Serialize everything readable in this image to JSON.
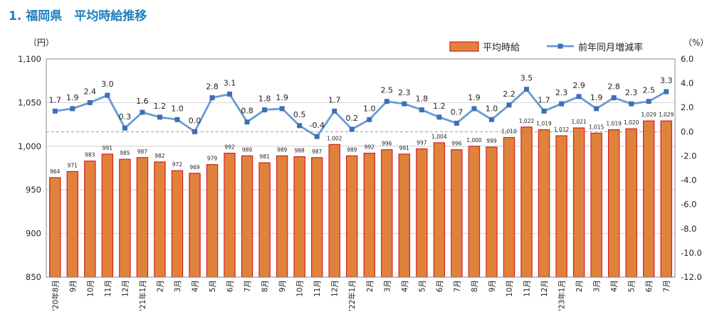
{
  "chart_data": {
    "type": "bar",
    "title": "1. 福岡県　平均時給推移",
    "y_left_unit": "（円）",
    "y_right_unit": "（%）",
    "y_left_lim": [
      850,
      1100
    ],
    "y_left_ticks": [
      "850",
      "900",
      "950",
      "1,000",
      "1,050",
      "1,100"
    ],
    "y_right_lim": [
      -12.0,
      6.0
    ],
    "y_right_ticks": [
      "-12.0",
      "-10.0",
      "-8.0",
      "-6.0",
      "-4.0",
      "-2.0",
      "0.0",
      "2.0",
      "4.0",
      "6.0"
    ],
    "reference_line": 0.0,
    "categories": [
      "'20年8月",
      "9月",
      "10月",
      "11月",
      "12月",
      "'21年1月",
      "2月",
      "3月",
      "4月",
      "5月",
      "6月",
      "7月",
      "8月",
      "9月",
      "10月",
      "11月",
      "12月",
      "'22年1月",
      "2月",
      "3月",
      "4月",
      "5月",
      "6月",
      "7月",
      "8月",
      "9月",
      "10月",
      "11月",
      "12月",
      "'23年1月",
      "2月",
      "3月",
      "4月",
      "5月",
      "6月",
      "7月"
    ],
    "series": [
      {
        "name": "平均時給",
        "type": "bar",
        "axis": "left",
        "color": "#e0823c",
        "edge_color": "#d42020",
        "values": [
          964,
          971,
          983,
          991,
          985,
          987,
          982,
          972,
          969,
          979,
          992,
          989,
          981,
          989,
          988,
          987,
          1002,
          989,
          992,
          996,
          991,
          997,
          1004,
          996,
          1000,
          999,
          1010,
          1022,
          1019,
          1012,
          1021,
          1015,
          1019,
          1020,
          1029,
          1029
        ],
        "labels": [
          "964",
          "971",
          "983",
          "991",
          "985",
          "987",
          "982",
          "972",
          "969",
          "979",
          "992",
          "989",
          "981",
          "989",
          "988",
          "987",
          "1,002",
          "989",
          "992",
          "996",
          "991",
          "997",
          "1,004",
          "996",
          "1,000",
          "999",
          "1,010",
          "1,022",
          "1,019",
          "1,012",
          "1,021",
          "1,015",
          "1,019",
          "1,020",
          "1,029",
          "1,029"
        ]
      },
      {
        "name": "前年同月増減率",
        "type": "line",
        "axis": "right",
        "color": "#6a9ad4",
        "marker_color": "#3d6fb5",
        "values": [
          1.7,
          1.9,
          2.4,
          3.0,
          0.3,
          1.6,
          1.2,
          1.0,
          0.0,
          2.8,
          3.1,
          0.8,
          1.8,
          1.9,
          0.5,
          -0.4,
          1.7,
          0.2,
          1.0,
          2.5,
          2.3,
          1.8,
          1.2,
          0.7,
          1.9,
          1.0,
          2.2,
          3.5,
          1.7,
          2.3,
          2.9,
          1.9,
          2.8,
          2.3,
          2.5,
          3.3
        ],
        "labels": [
          "1.7",
          "1.9",
          "2.4",
          "3.0",
          "0.3",
          "1.6",
          "1.2",
          "1.0",
          "0.0",
          "2.8",
          "3.1",
          "0.8",
          "1.8",
          "1.9",
          "0.5",
          "-0.4",
          "1.7",
          "0.2",
          "1.0",
          "2.5",
          "2.3",
          "1.8",
          "1.2",
          "0.7",
          "1.9",
          "1.0",
          "2.2",
          "3.5",
          "1.7",
          "2.3",
          "2.9",
          "1.9",
          "2.8",
          "2.3",
          "2.5",
          "3.3"
        ]
      }
    ],
    "legend_position": "top-right",
    "grid": "horizontal"
  }
}
